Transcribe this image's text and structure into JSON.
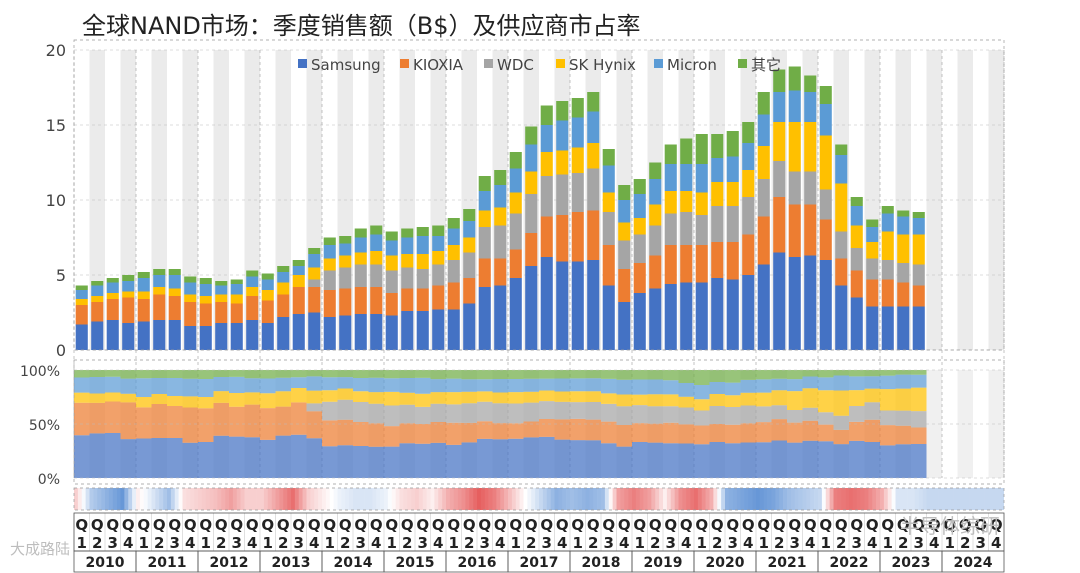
{
  "chart_data": {
    "title": "全球NAND市场：季度销售额（B$）及供应商市占率",
    "type": "stacked-bar",
    "legend": [
      "Samsung",
      "KIOXIA",
      "WDC",
      "SK Hynix",
      "Micron",
      "其它"
    ],
    "colors": {
      "Samsung": "#4472C4",
      "KIOXIA": "#ED7D31",
      "WDC": "#A5A5A5",
      "SK Hynix": "#FFC000",
      "Micron": "#5B9BD5",
      "其它": "#70AD47"
    },
    "ylim": [
      0,
      20
    ],
    "yticks": [
      "0",
      "5",
      "10",
      "15",
      "20"
    ],
    "share_yticks": [
      "0%",
      "50%",
      "100%"
    ],
    "years": [
      "2010",
      "2011",
      "2012",
      "2013",
      "2014",
      "2015",
      "2016",
      "2017",
      "2018",
      "2019",
      "2020",
      "2021",
      "2022",
      "2023",
      "2024"
    ],
    "quarter_labels": [
      "Q1",
      "Q2",
      "Q3",
      "Q4"
    ],
    "quarter_numbers": [
      "1",
      "2",
      "3",
      "4"
    ],
    "series": [
      {
        "name": "Samsung",
        "values": [
          1.7,
          1.9,
          2.0,
          1.8,
          1.9,
          2.0,
          2.0,
          1.6,
          1.6,
          1.8,
          1.8,
          2.0,
          1.8,
          2.2,
          2.4,
          2.5,
          2.2,
          2.3,
          2.4,
          2.4,
          2.3,
          2.6,
          2.6,
          2.7,
          2.7,
          3.1,
          4.2,
          4.3,
          4.8,
          5.6,
          6.2,
          5.9,
          5.9,
          6.0,
          4.3,
          3.2,
          3.8,
          4.1,
          4.4,
          4.5,
          4.5,
          4.8,
          4.7,
          5.0,
          5.7,
          6.5,
          6.2,
          6.3,
          6.0,
          4.3,
          3.5,
          2.9,
          2.9,
          2.9,
          2.9
        ]
      },
      {
        "name": "KIOXIA",
        "values": [
          1.3,
          1.3,
          1.4,
          1.7,
          1.5,
          1.7,
          1.6,
          1.6,
          1.5,
          1.4,
          1.3,
          1.6,
          1.5,
          1.5,
          1.8,
          1.7,
          1.8,
          1.8,
          1.8,
          1.8,
          1.5,
          1.5,
          1.5,
          1.6,
          1.8,
          1.7,
          1.9,
          1.8,
          1.9,
          2.2,
          2.7,
          3.1,
          3.3,
          3.3,
          2.7,
          2.2,
          2.0,
          2.2,
          2.6,
          2.5,
          2.5,
          2.4,
          2.5,
          2.7,
          3.2,
          3.7,
          3.5,
          3.4,
          2.7,
          1.8,
          1.8,
          1.8,
          1.8,
          1.6,
          1.4
        ]
      },
      {
        "name": "WDC",
        "values": [
          0.0,
          0.0,
          0.0,
          0.0,
          0.0,
          0.0,
          0.0,
          0.0,
          0.0,
          0.0,
          0.0,
          0.0,
          0.0,
          0.0,
          0.0,
          0.5,
          1.3,
          1.4,
          1.5,
          1.5,
          1.5,
          1.4,
          1.3,
          1.4,
          1.5,
          1.7,
          2.1,
          2.2,
          2.4,
          2.6,
          2.7,
          2.7,
          2.6,
          2.8,
          2.2,
          1.9,
          1.9,
          2.0,
          2.1,
          2.2,
          2.0,
          2.4,
          2.4,
          2.5,
          2.5,
          2.4,
          2.2,
          2.2,
          2.0,
          1.8,
          1.5,
          1.4,
          1.3,
          1.3,
          1.4
        ]
      },
      {
        "name": "SK Hynix",
        "values": [
          0.4,
          0.4,
          0.4,
          0.4,
          0.5,
          0.5,
          0.5,
          0.5,
          0.5,
          0.5,
          0.6,
          0.6,
          0.7,
          0.8,
          0.8,
          0.8,
          0.8,
          0.8,
          0.8,
          0.9,
          1.0,
          0.9,
          1.0,
          0.9,
          1.0,
          1.0,
          1.1,
          1.2,
          1.4,
          1.5,
          1.6,
          1.6,
          1.7,
          1.7,
          1.3,
          1.2,
          1.1,
          1.4,
          1.5,
          1.4,
          1.5,
          1.6,
          1.6,
          1.8,
          2.2,
          2.6,
          3.3,
          3.3,
          3.6,
          3.2,
          1.5,
          1.1,
          1.9,
          1.9,
          2.0
        ]
      },
      {
        "name": "Micron",
        "values": [
          0.6,
          0.7,
          0.7,
          0.7,
          0.9,
          0.8,
          0.9,
          0.8,
          0.8,
          0.6,
          0.7,
          0.7,
          0.7,
          0.7,
          0.6,
          0.9,
          0.9,
          0.8,
          1.0,
          1.1,
          1.0,
          1.1,
          1.2,
          1.0,
          1.1,
          1.1,
          1.3,
          1.5,
          1.6,
          1.8,
          1.8,
          2.0,
          2.0,
          2.1,
          1.8,
          1.5,
          1.6,
          1.7,
          1.8,
          1.8,
          1.9,
          1.6,
          1.7,
          1.8,
          2.1,
          2.0,
          2.1,
          2.0,
          2.1,
          1.9,
          1.3,
          1.0,
          1.2,
          1.2,
          1.1
        ]
      },
      {
        "name": "其它",
        "values": [
          0.3,
          0.3,
          0.3,
          0.4,
          0.4,
          0.4,
          0.4,
          0.4,
          0.4,
          0.3,
          0.3,
          0.4,
          0.4,
          0.4,
          0.4,
          0.4,
          0.5,
          0.5,
          0.6,
          0.6,
          0.6,
          0.6,
          0.6,
          0.7,
          0.7,
          0.8,
          1.0,
          1.0,
          1.1,
          1.2,
          1.3,
          1.3,
          1.3,
          1.3,
          1.1,
          1.0,
          1.0,
          1.1,
          1.3,
          1.7,
          2.0,
          1.6,
          1.7,
          1.4,
          1.5,
          1.5,
          1.6,
          1.1,
          1.2,
          0.7,
          0.6,
          0.5,
          0.5,
          0.4,
          0.4
        ]
      }
    ],
    "heat_values": [
      0.3,
      -0.4,
      -0.6,
      -0.8,
      0.1,
      -0.2,
      -0.5,
      0.2,
      0.3,
      0.4,
      0.6,
      0.3,
      0.3,
      0.6,
      0.9,
      0.3,
      0.1,
      -0.1,
      -0.2,
      -0.2,
      -0.1,
      0.2,
      0.3,
      0.1,
      0.5,
      0.7,
      1.0,
      0.8,
      0.4,
      0.0,
      -0.3,
      -0.6,
      -0.5,
      -0.6,
      -0.5,
      0.6,
      0.8,
      0.6,
      0.1,
      0.7,
      0.9,
      0.5,
      -0.6,
      -0.7,
      -0.8,
      -0.7,
      -0.5,
      -0.4,
      -0.3,
      0.8,
      0.9,
      0.8,
      0.5,
      -0.2,
      -0.2,
      -0.3,
      -0.3,
      -0.3,
      -0.3,
      -0.3
    ]
  },
  "watermarks": {
    "left": "大成路陆",
    "right": "半导体综研"
  }
}
